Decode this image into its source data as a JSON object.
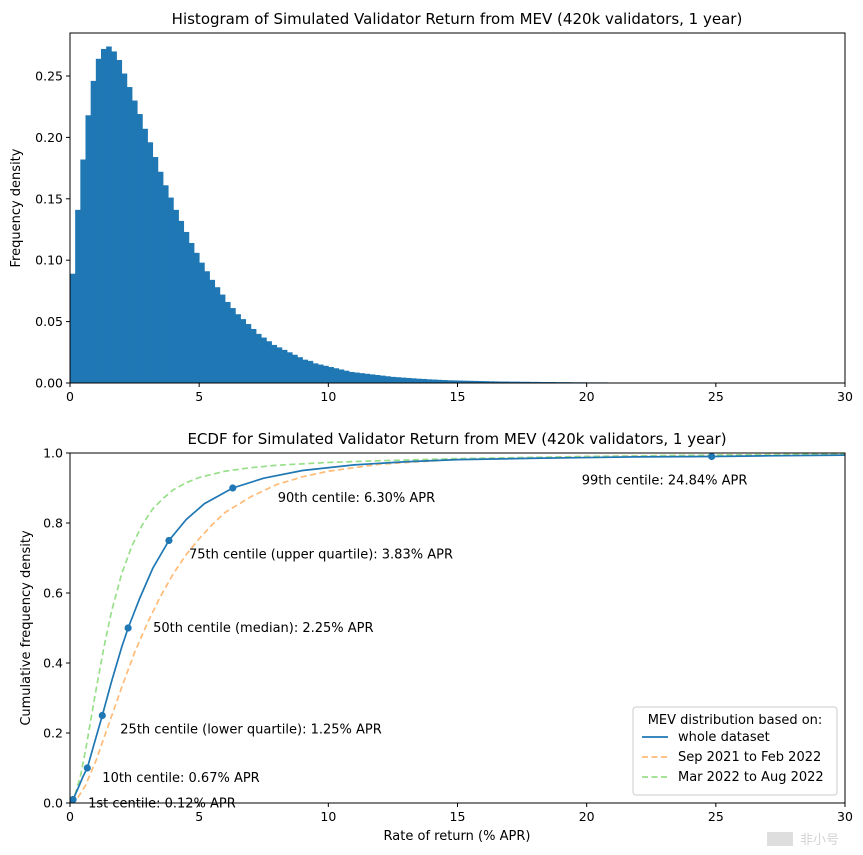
{
  "chart_data": [
    {
      "type": "bar",
      "title": "Histogram of Simulated Validator Return from MEV (420k validators, 1 year)",
      "xlabel": "",
      "ylabel": "Frequency density",
      "xlim": [
        0,
        30
      ],
      "ylim": [
        0,
        0.285
      ],
      "xticks": [
        "0",
        "5",
        "10",
        "15",
        "20",
        "25",
        "30"
      ],
      "yticks": [
        "0.00",
        "0.05",
        "0.10",
        "0.15",
        "0.20",
        "0.25"
      ],
      "bin_width": 0.2,
      "bin_start": 0,
      "values": [
        0.089,
        0.141,
        0.182,
        0.218,
        0.246,
        0.264,
        0.272,
        0.274,
        0.27,
        0.263,
        0.252,
        0.241,
        0.23,
        0.219,
        0.207,
        0.196,
        0.184,
        0.172,
        0.161,
        0.151,
        0.141,
        0.132,
        0.123,
        0.114,
        0.106,
        0.098,
        0.091,
        0.084,
        0.078,
        0.072,
        0.066,
        0.061,
        0.056,
        0.052,
        0.048,
        0.044,
        0.04,
        0.037,
        0.034,
        0.031,
        0.029,
        0.027,
        0.025,
        0.023,
        0.021,
        0.019,
        0.018,
        0.016,
        0.015,
        0.014,
        0.013,
        0.012,
        0.011,
        0.01,
        0.009,
        0.0085,
        0.008,
        0.0075,
        0.007,
        0.0065,
        0.006,
        0.0055,
        0.005,
        0.0047,
        0.0044,
        0.0041,
        0.0038,
        0.0035,
        0.0033,
        0.003,
        0.0028,
        0.0026,
        0.0024,
        0.0022,
        0.0021,
        0.002,
        0.0019,
        0.0018,
        0.0017,
        0.0016,
        0.0015,
        0.0014,
        0.0013,
        0.0012,
        0.0012,
        0.0011,
        0.0011,
        0.001,
        0.001,
        0.0009,
        0.0009,
        0.0008,
        0.0008,
        0.0008,
        0.0007,
        0.0007,
        0.0007,
        0.0006,
        0.0006,
        0.0006,
        0.0005,
        0.0005,
        0.0005,
        0.0005,
        0.0004,
        0.0004,
        0.0004,
        0.0004,
        0.0004,
        0.0003,
        0.0003,
        0.0003,
        0.0003,
        0.0003,
        0.0003,
        0.0003,
        0.0002,
        0.0002,
        0.0002,
        0.0002,
        0.0002,
        0.0002,
        0.0002,
        0.0002,
        0.0002,
        0.0002,
        0.0002,
        0.0001,
        0.0001,
        0.0001,
        0.0001,
        0.0001,
        0.0001,
        0.0001,
        0.0001,
        0.0001,
        0.0001,
        0.0001,
        0.0001,
        0.0001,
        0.0001,
        0.0001,
        0.0001,
        0.0001,
        0.0001,
        0.0001,
        0.0001,
        0.0001,
        0.0001,
        0.0001
      ],
      "color": "#1f77b4"
    },
    {
      "type": "line",
      "title": "ECDF for Simulated Validator Return from MEV (420k validators, 1 year)",
      "xlabel": "Rate of return (% APR)",
      "ylabel": "Cumulative frequency density",
      "xlim": [
        0,
        30
      ],
      "ylim": [
        0,
        1
      ],
      "xticks": [
        "0",
        "5",
        "10",
        "15",
        "20",
        "25",
        "30"
      ],
      "yticks": [
        "0.0",
        "0.2",
        "0.4",
        "0.6",
        "0.8",
        "1.0"
      ],
      "legend": {
        "title": "MEV distribution based on:",
        "position": "lower-right"
      },
      "series": [
        {
          "name": "whole dataset",
          "color": "#1f77b4",
          "style": "solid",
          "x": [
            0,
            0.12,
            0.3,
            0.5,
            0.67,
            0.9,
            1.25,
            1.6,
            2.0,
            2.25,
            2.7,
            3.2,
            3.83,
            4.5,
            5.2,
            6.3,
            7.5,
            9,
            11,
            13,
            15,
            18,
            20,
            22,
            24.84,
            27,
            30
          ],
          "y": [
            0,
            0.01,
            0.04,
            0.075,
            0.1,
            0.16,
            0.25,
            0.345,
            0.445,
            0.5,
            0.585,
            0.67,
            0.75,
            0.81,
            0.855,
            0.9,
            0.928,
            0.95,
            0.966,
            0.975,
            0.981,
            0.985,
            0.987,
            0.989,
            0.99,
            0.992,
            0.994
          ]
        },
        {
          "name": "Sep 2021 to Feb 2022",
          "color": "#ffbb78",
          "style": "dashed",
          "x": [
            0,
            0.3,
            0.6,
            1.0,
            1.5,
            2.0,
            2.5,
            3.0,
            3.5,
            4.0,
            4.5,
            5.0,
            5.5,
            6.0,
            7.0,
            8.0,
            9.0,
            10,
            12,
            15,
            20,
            25,
            30
          ],
          "y": [
            0,
            0.015,
            0.05,
            0.12,
            0.225,
            0.33,
            0.43,
            0.515,
            0.59,
            0.655,
            0.71,
            0.755,
            0.795,
            0.83,
            0.875,
            0.91,
            0.932,
            0.948,
            0.968,
            0.982,
            0.99,
            0.994,
            0.996
          ]
        },
        {
          "name": "Mar 2022 to Aug 2022",
          "color": "#98df8a",
          "style": "dashed",
          "x": [
            0,
            0.2,
            0.4,
            0.6,
            0.8,
            1.0,
            1.3,
            1.6,
            2.0,
            2.4,
            2.8,
            3.2,
            3.6,
            4.0,
            4.5,
            5.0,
            6.0,
            7.0,
            8.0,
            10,
            12,
            15,
            20,
            25,
            30
          ],
          "y": [
            0,
            0.025,
            0.075,
            0.15,
            0.235,
            0.32,
            0.44,
            0.545,
            0.655,
            0.735,
            0.795,
            0.84,
            0.87,
            0.895,
            0.915,
            0.93,
            0.948,
            0.958,
            0.965,
            0.973,
            0.978,
            0.984,
            0.99,
            0.994,
            0.997
          ]
        }
      ],
      "markers": [
        {
          "x": 0.12,
          "y": 0.01,
          "label": "1st centile: 0.12% APR"
        },
        {
          "x": 0.67,
          "y": 0.1,
          "label": "10th centile: 0.67% APR"
        },
        {
          "x": 1.25,
          "y": 0.25,
          "label": "25th centile (lower quartile): 1.25% APR"
        },
        {
          "x": 2.25,
          "y": 0.5,
          "label": "50th centile (median): 2.25% APR"
        },
        {
          "x": 3.83,
          "y": 0.75,
          "label": "75th centile (upper quartile): 3.83% APR"
        },
        {
          "x": 6.3,
          "y": 0.9,
          "label": "90th centile: 6.30% APR"
        },
        {
          "x": 24.84,
          "y": 0.99,
          "label": "99th centile: 24.84% APR"
        }
      ]
    }
  ],
  "watermark": {
    "text": "非小号"
  }
}
